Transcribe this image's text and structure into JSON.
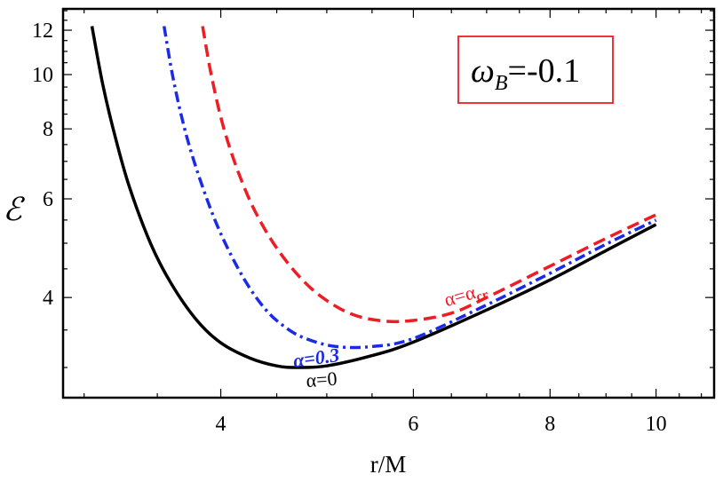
{
  "chart_data": {
    "type": "line",
    "title": "",
    "xlabel": "r/M",
    "ylabel": "ℰ",
    "x_scale": "log",
    "y_scale": "log",
    "xlim": [
      2.87,
      11.3
    ],
    "ylim": [
      2.65,
      13.1
    ],
    "x_ticks": [
      4,
      6,
      8,
      10
    ],
    "x_tick_labels": [
      "4",
      "6",
      "8",
      "10"
    ],
    "y_ticks": [
      4,
      6,
      8,
      10,
      12
    ],
    "y_tick_labels": [
      "4",
      "6",
      "8",
      "10",
      "12"
    ],
    "grid": false,
    "legend": "none",
    "annotation": {
      "parts": [
        "ω",
        "B",
        "=-0.1"
      ],
      "placement": "top-right",
      "border_color": "#ee1c25"
    },
    "series": [
      {
        "label_parts": [
          "α=",
          "0"
        ],
        "color": "#000000",
        "style": "solid",
        "label_at": [
          4.95,
          2.78
        ],
        "label_rotate": -4,
        "label_bold": false,
        "label_italic": false,
        "x": [
          3.05,
          3.12,
          3.2,
          3.3,
          3.45,
          3.6,
          3.8,
          4.0,
          4.25,
          4.5,
          4.7,
          5.0,
          5.5,
          6.0,
          7.0,
          8.0,
          9.0,
          10.0
        ],
        "y": [
          12.2,
          9.6,
          7.8,
          6.3,
          5.0,
          4.25,
          3.65,
          3.32,
          3.12,
          3.02,
          3.0,
          3.02,
          3.15,
          3.33,
          3.8,
          4.3,
          4.85,
          5.4
        ]
      },
      {
        "label_parts": [
          "α=0.3"
        ],
        "color": "#1a2be8",
        "style": "dashdot",
        "label_at": [
          4.9,
          3.04
        ],
        "label_rotate": -8,
        "label_bold": true,
        "label_italic": true,
        "x": [
          3.55,
          3.62,
          3.72,
          3.85,
          4.0,
          4.2,
          4.4,
          4.6,
          4.8,
          5.1,
          5.5,
          6.0,
          7.0,
          8.0,
          9.0,
          10.0
        ],
        "y": [
          12.2,
          9.8,
          7.8,
          6.3,
          5.2,
          4.32,
          3.8,
          3.52,
          3.37,
          3.27,
          3.27,
          3.38,
          3.88,
          4.42,
          4.98,
          5.5
        ]
      },
      {
        "label_parts": [
          "α=α",
          "cr"
        ],
        "color": "#ee1c25",
        "style": "dashed",
        "label_at": [
          6.72,
          3.95
        ],
        "label_rotate": -16,
        "label_bold": false,
        "label_italic": false,
        "x": [
          3.85,
          3.92,
          4.02,
          4.15,
          4.3,
          4.5,
          4.75,
          5.0,
          5.3,
          5.65,
          6.0,
          6.5,
          7.0,
          8.0,
          9.0,
          10.0
        ],
        "y": [
          12.2,
          10.0,
          8.1,
          6.7,
          5.7,
          4.9,
          4.3,
          3.95,
          3.72,
          3.63,
          3.64,
          3.75,
          4.0,
          4.55,
          5.1,
          5.62
        ]
      }
    ]
  }
}
